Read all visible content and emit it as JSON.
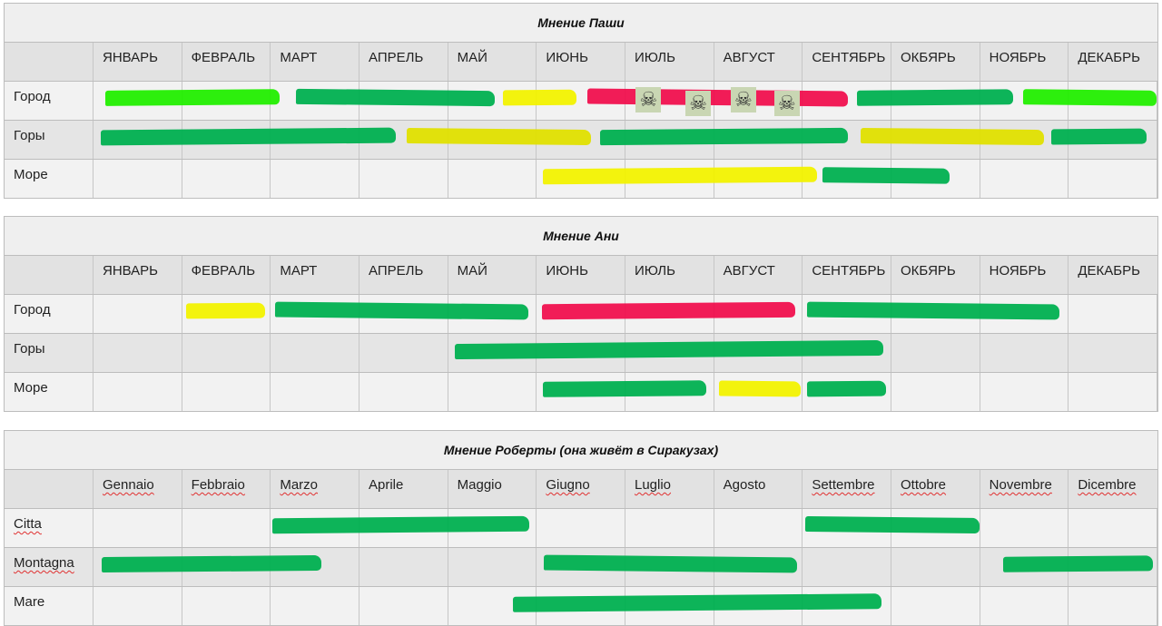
{
  "colors": {
    "green": "#00b050",
    "light_green": "#22ee00",
    "yellow": "#f2f200",
    "dark_yellow": "#e0e000",
    "red": "#f0104e"
  },
  "tables": [
    {
      "title": "Мнение Паши",
      "months": [
        "ЯНВАРЬ",
        "ФЕВРАЛЬ",
        "МАРТ",
        "АПРЕЛЬ",
        "МАЙ",
        "ИЮНЬ",
        "ИЮЛЬ",
        "АВГУСТ",
        "СЕНТЯБРЬ",
        "ОКБЯРЬ",
        "НОЯБРЬ",
        "ДЕКАБРЬ"
      ],
      "rows": [
        {
          "label": "Город",
          "strokes": [
            {
              "from": 0.13,
              "to": 2.1,
              "color": "light_green"
            },
            {
              "from": 2.28,
              "to": 4.52,
              "color": "green"
            },
            {
              "from": 4.62,
              "to": 5.45,
              "color": "yellow"
            },
            {
              "from": 5.57,
              "to": 8.51,
              "color": "red"
            },
            {
              "from": 8.61,
              "to": 10.37,
              "color": "green"
            },
            {
              "from": 10.48,
              "to": 11.98,
              "color": "light_green"
            }
          ],
          "skulls": [
            6.26,
            6.82,
            7.33,
            7.82
          ]
        },
        {
          "label": "Горы",
          "strokes": [
            {
              "from": 0.08,
              "to": 3.41,
              "color": "green"
            },
            {
              "from": 3.53,
              "to": 5.61,
              "color": "dark_yellow"
            },
            {
              "from": 5.71,
              "to": 8.51,
              "color": "green"
            },
            {
              "from": 8.65,
              "to": 10.72,
              "color": "dark_yellow"
            },
            {
              "from": 10.8,
              "to": 11.88,
              "color": "green"
            }
          ]
        },
        {
          "label": "Море",
          "strokes": [
            {
              "from": 5.07,
              "to": 8.16,
              "color": "yellow"
            },
            {
              "from": 8.22,
              "to": 9.65,
              "color": "green"
            }
          ]
        }
      ]
    },
    {
      "title": "Мнение Ани",
      "months": [
        "ЯНВАРЬ",
        "ФЕВРАЛЬ",
        "МАРТ",
        "АПРЕЛЬ",
        "МАЙ",
        "ИЮНЬ",
        "ИЮЛЬ",
        "АВГУСТ",
        "СЕНТЯБРЬ",
        "ОКБЯРЬ",
        "НОЯБРЬ",
        "ДЕКАБРЬ"
      ],
      "rows": [
        {
          "label": "Город",
          "strokes": [
            {
              "from": 1.04,
              "to": 1.93,
              "color": "yellow"
            },
            {
              "from": 2.05,
              "to": 4.91,
              "color": "green"
            },
            {
              "from": 5.06,
              "to": 7.92,
              "color": "red"
            },
            {
              "from": 8.05,
              "to": 10.9,
              "color": "green"
            }
          ]
        },
        {
          "label": "Горы",
          "strokes": [
            {
              "from": 4.07,
              "to": 8.9,
              "color": "green"
            }
          ]
        },
        {
          "label": "Море",
          "strokes": [
            {
              "from": 5.07,
              "to": 6.91,
              "color": "green"
            },
            {
              "from": 7.05,
              "to": 7.97,
              "color": "yellow"
            },
            {
              "from": 8.05,
              "to": 8.94,
              "color": "green"
            }
          ]
        }
      ]
    },
    {
      "title": "Мнение Роберты (она живёт в Сиракузах)",
      "months": [
        "Gennaio",
        "Febbraio",
        "Marzo",
        "Aprile",
        "Maggio",
        "Giugno",
        "Luglio",
        "Agosto",
        "Settembre",
        "Ottobre",
        "Novembre",
        "Dicembre"
      ],
      "spellcheck_months": [
        true,
        true,
        true,
        false,
        false,
        true,
        true,
        false,
        true,
        true,
        true,
        true
      ],
      "rows": [
        {
          "label": "Citta",
          "spellcheck": true,
          "strokes": [
            {
              "from": 2.02,
              "to": 4.92,
              "color": "green"
            },
            {
              "from": 8.03,
              "to": 10.0,
              "color": "green"
            }
          ]
        },
        {
          "label": "Montagna",
          "spellcheck": true,
          "strokes": [
            {
              "from": 0.09,
              "to": 2.57,
              "color": "green"
            },
            {
              "from": 5.08,
              "to": 7.94,
              "color": "green"
            },
            {
              "from": 10.26,
              "to": 11.95,
              "color": "green"
            }
          ]
        },
        {
          "label": "Mare",
          "strokes": [
            {
              "from": 4.73,
              "to": 8.89,
              "color": "green"
            }
          ]
        }
      ]
    }
  ],
  "skull_icon": "☠"
}
